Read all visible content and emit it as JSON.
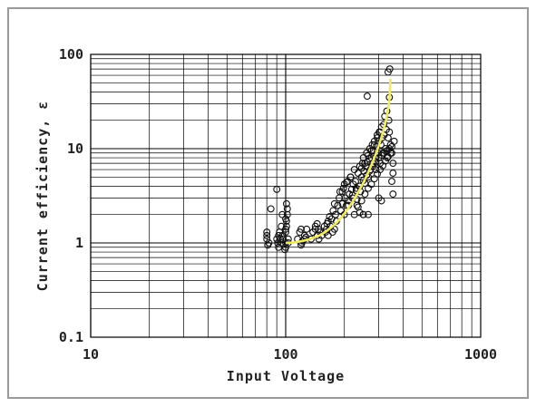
{
  "chart_data": {
    "type": "scatter",
    "title": "",
    "xlabel": "Input Voltage",
    "ylabel": "Current efficiency, ε",
    "xscale": "log",
    "yscale": "log",
    "xlim": [
      10,
      1000
    ],
    "ylim": [
      0.1,
      100
    ],
    "x_ticks": [
      "10",
      "100",
      "1000"
    ],
    "y_ticks": [
      "0.1",
      "1",
      "10",
      "100"
    ],
    "grid": true,
    "legend": "none",
    "marker_color": "#111111",
    "fit_color": "#f0ea62",
    "series": [
      {
        "type": "scatter",
        "marker": "open-circle",
        "x": [
          80,
          80,
          82,
          80,
          81,
          84,
          90,
          90,
          91,
          92,
          92,
          93,
          94,
          95,
          96,
          95,
          96,
          97,
          99,
          100,
          100,
          101,
          101,
          102,
          102,
          101,
          100,
          103,
          100,
          100,
          103,
          115,
          118,
          120,
          121,
          125,
          125,
          128,
          120,
          122,
          127,
          135,
          138,
          142,
          145,
          145,
          148,
          150,
          142,
          147,
          153,
          158,
          160,
          162,
          165,
          168,
          170,
          165,
          163,
          172,
          175,
          178,
          180,
          182,
          178,
          174,
          185,
          188,
          190,
          192,
          195,
          198,
          200,
          202,
          205,
          208,
          210,
          212,
          215,
          218,
          220,
          222,
          225,
          228,
          230,
          232,
          235,
          238,
          240,
          242,
          245,
          248,
          250,
          252,
          255,
          258,
          260,
          262,
          265,
          268,
          270,
          272,
          275,
          278,
          280,
          282,
          285,
          288,
          290,
          292,
          295,
          298,
          300,
          302,
          305,
          308,
          310,
          312,
          315,
          318,
          320,
          322,
          325,
          328,
          330,
          332,
          335,
          338,
          340,
          345,
          350,
          355,
          360,
          200,
          210,
          220,
          230,
          240,
          250,
          260,
          270,
          280,
          290,
          300,
          310,
          320,
          330,
          340,
          350,
          225,
          235,
          245,
          255,
          265,
          275,
          285,
          295,
          305,
          315,
          325,
          335,
          345,
          355,
          195,
          205,
          215,
          245,
          255,
          265,
          275,
          285,
          295,
          305,
          265,
          262,
          335,
          342,
          340,
          350,
          355,
          300,
          310,
          250,
          240,
          232,
          250
        ],
        "y": [
          1.2,
          1.1,
          1.0,
          1.3,
          0.95,
          2.3,
          3.7,
          1.1,
          1.0,
          1.2,
          0.9,
          1.3,
          1.1,
          1.0,
          2.0,
          1.5,
          1.2,
          1.1,
          0.85,
          1.0,
          1.3,
          1.5,
          1.7,
          2.0,
          2.3,
          2.6,
          0.9,
          1.1,
          1.4,
          1.8,
          1.0,
          1.1,
          1.3,
          1.4,
          1.0,
          1.1,
          1.2,
          1.4,
          0.95,
          1.05,
          1.15,
          1.1,
          1.3,
          1.4,
          1.6,
          1.2,
          1.1,
          1.3,
          1.5,
          1.4,
          1.2,
          1.5,
          1.3,
          1.4,
          1.7,
          1.9,
          1.5,
          1.2,
          1.6,
          1.8,
          2.2,
          2.6,
          2.0,
          1.7,
          1.4,
          1.3,
          2.5,
          3.0,
          3.5,
          2.2,
          2.6,
          3.8,
          4.2,
          3.0,
          2.5,
          4.5,
          2.8,
          3.3,
          5.0,
          3.7,
          3.0,
          4.2,
          6.0,
          4.5,
          3.6,
          2.9,
          5.5,
          4.0,
          6.5,
          3.5,
          5.0,
          7.0,
          8.0,
          5.8,
          4.3,
          6.5,
          9.0,
          7.2,
          5.0,
          7.8,
          10.0,
          6.0,
          8.0,
          11.0,
          7.0,
          9.5,
          12.0,
          8.0,
          6.0,
          10.5,
          14.0,
          9.0,
          12.0,
          15.0,
          7.0,
          11.0,
          17.0,
          13.0,
          9.0,
          18.0,
          14.0,
          22.0,
          10.0,
          16.0,
          25.0,
          8.0,
          13.0,
          20.0,
          15.0,
          11.0,
          9.0,
          7.0,
          12.0,
          2.0,
          2.5,
          3.2,
          3.8,
          4.0,
          4.6,
          5.2,
          5.8,
          6.5,
          7.2,
          8.0,
          8.5,
          9.0,
          9.5,
          10.0,
          10.5,
          2.0,
          2.4,
          2.8,
          3.3,
          3.8,
          4.2,
          4.8,
          5.4,
          6.0,
          6.6,
          7.4,
          8.2,
          9.0,
          5.5,
          3.5,
          4.4,
          5.0,
          6.2,
          7.0,
          8.5,
          9.5,
          11.0,
          13.0,
          15.0,
          2.0,
          36.0,
          65.0,
          70.0,
          35.0,
          4.5,
          3.3,
          3.0,
          2.8,
          2.0,
          2.1,
          2.5,
          2.0
        ]
      },
      {
        "type": "line",
        "x": [
          100,
          110,
          120,
          130,
          140,
          150,
          160,
          170,
          180,
          190,
          200,
          210,
          220,
          230,
          240,
          250,
          260,
          270,
          280,
          290,
          300,
          310,
          320,
          330,
          340,
          345
        ],
        "y": [
          1.0,
          1.01,
          1.04,
          1.08,
          1.14,
          1.21,
          1.31,
          1.44,
          1.6,
          1.8,
          2.05,
          2.35,
          2.72,
          3.17,
          3.7,
          4.35,
          5.15,
          6.1,
          7.3,
          8.8,
          10.7,
          13.2,
          16.7,
          21.8,
          32.0,
          55.0
        ]
      }
    ]
  }
}
